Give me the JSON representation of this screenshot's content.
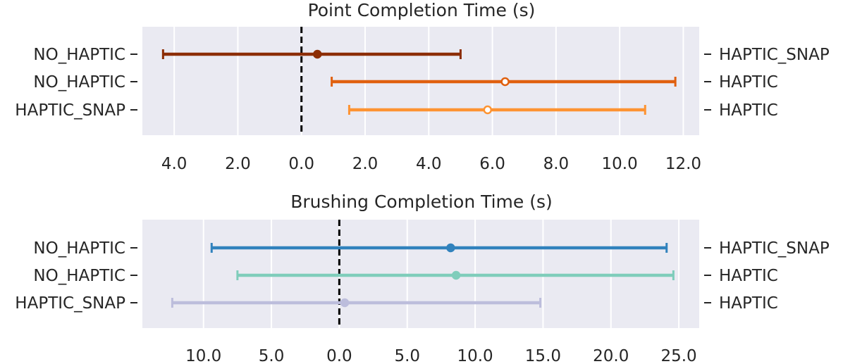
{
  "chart_data": [
    {
      "type": "errorbar",
      "title": "Point Completion Time (s)",
      "xlim": [
        -5.0,
        12.5
      ],
      "xticks": [
        -4,
        -2,
        0,
        2,
        4,
        6,
        8,
        10,
        12
      ],
      "xtick_labels": [
        "4.0",
        "2.0",
        "0.0",
        "2.0",
        "4.0",
        "6.0",
        "8.0",
        "10.0",
        "12.0"
      ],
      "reference_line": 0,
      "grid": true,
      "rows": [
        {
          "left_label": "NO_HAPTIC",
          "right_label": "HAPTIC_SNAP",
          "center": 0.5,
          "low": -4.35,
          "high": 5.0,
          "color": "#8c2d04",
          "marker": "filled"
        },
        {
          "left_label": "NO_HAPTIC",
          "right_label": "HAPTIC",
          "center": 6.4,
          "low": 0.95,
          "high": 11.75,
          "color": "#e0600f",
          "marker": "hollow"
        },
        {
          "left_label": "HAPTIC_SNAP",
          "right_label": "HAPTIC",
          "center": 5.85,
          "low": 1.5,
          "high": 10.8,
          "color": "#fd9332",
          "marker": "hollow"
        }
      ]
    },
    {
      "type": "errorbar",
      "title": "Brushing Completion Time (s)",
      "xlim": [
        -14.5,
        26.5
      ],
      "xticks": [
        -10,
        -5,
        0,
        5,
        10,
        15,
        20,
        25
      ],
      "xtick_labels": [
        "10.0",
        "5.0",
        "0.0",
        "5.0",
        "10.0",
        "15.0",
        "20.0",
        "25.0"
      ],
      "reference_line": 0,
      "grid": true,
      "rows": [
        {
          "left_label": "NO_HAPTIC",
          "right_label": "HAPTIC_SNAP",
          "center": 8.2,
          "low": -9.4,
          "high": 24.1,
          "color": "#3182bd",
          "marker": "filled"
        },
        {
          "left_label": "NO_HAPTIC",
          "right_label": "HAPTIC",
          "center": 8.6,
          "low": -7.5,
          "high": 24.6,
          "color": "#7fcdbb",
          "marker": "filled"
        },
        {
          "left_label": "HAPTIC_SNAP",
          "right_label": "HAPTIC",
          "center": 0.4,
          "low": -12.3,
          "high": 14.8,
          "color": "#bcbddc",
          "marker": "filled"
        }
      ]
    }
  ]
}
